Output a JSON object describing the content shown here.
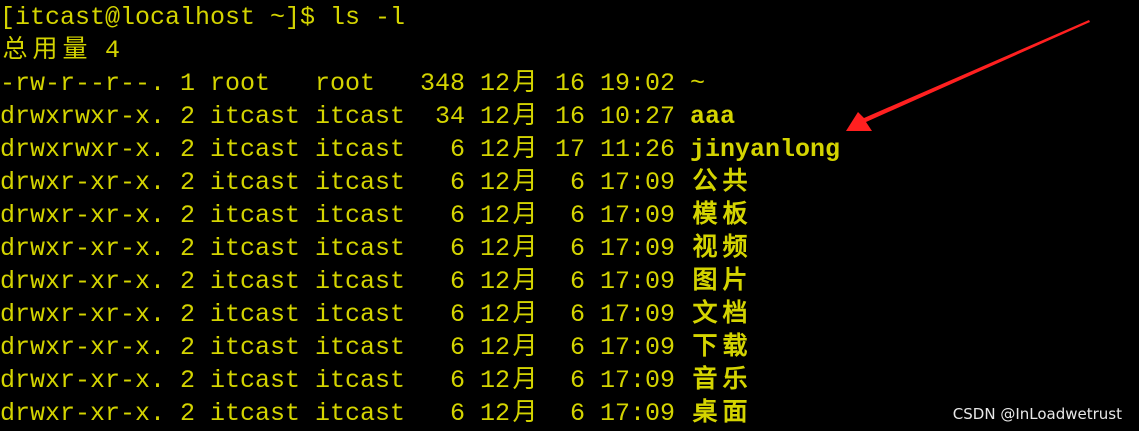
{
  "colors": {
    "foreground": "#d4d400",
    "arrow": "#ff2020",
    "watermark": "#e8e8e8"
  },
  "terminal": {
    "prompt": "[itcast@localhost ~]$ ls -l",
    "total": "总用量 4",
    "entries": [
      {
        "meta": "-rw-r--r--. 1 root   root   348 12月 16 19:02 ",
        "name": "~",
        "bold": false
      },
      {
        "meta": "drwxrwxr-x. 2 itcast itcast  34 12月 16 10:27 ",
        "name": "aaa",
        "bold": true
      },
      {
        "meta": "drwxrwxr-x. 2 itcast itcast   6 12月 17 11:26 ",
        "name": "jinyanlong",
        "bold": true
      },
      {
        "meta": "drwxr-xr-x. 2 itcast itcast   6 12月  6 17:09 ",
        "name": "公共",
        "bold": true
      },
      {
        "meta": "drwxr-xr-x. 2 itcast itcast   6 12月  6 17:09 ",
        "name": "模板",
        "bold": true
      },
      {
        "meta": "drwxr-xr-x. 2 itcast itcast   6 12月  6 17:09 ",
        "name": "视频",
        "bold": true
      },
      {
        "meta": "drwxr-xr-x. 2 itcast itcast   6 12月  6 17:09 ",
        "name": "图片",
        "bold": true
      },
      {
        "meta": "drwxr-xr-x. 2 itcast itcast   6 12月  6 17:09 ",
        "name": "文档",
        "bold": true
      },
      {
        "meta": "drwxr-xr-x. 2 itcast itcast   6 12月  6 17:09 ",
        "name": "下载",
        "bold": true
      },
      {
        "meta": "drwxr-xr-x. 2 itcast itcast   6 12月  6 17:09 ",
        "name": "音乐",
        "bold": true
      },
      {
        "meta": "drwxr-xr-x. 2 itcast itcast   6 12月  6 17:09 ",
        "name": "桌面",
        "bold": true
      }
    ]
  },
  "annotation": {
    "icon": "red-arrow-icon",
    "points_to": "jinyanlong"
  },
  "watermark": "CSDN @InLoadwetrust"
}
